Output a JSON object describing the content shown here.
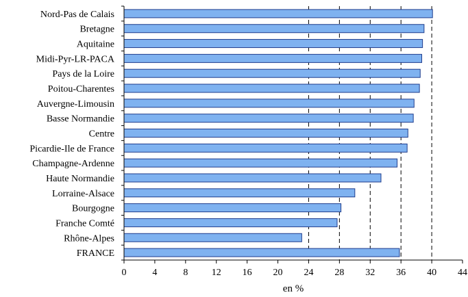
{
  "chart_data": {
    "type": "bar",
    "orientation": "horizontal",
    "title": "",
    "xlabel": "en %",
    "ylabel": "",
    "xlim": [
      0,
      44
    ],
    "x_ticks": [
      0,
      4,
      8,
      12,
      16,
      20,
      24,
      28,
      32,
      36,
      40,
      44
    ],
    "grid": "vertical dashed at 24, 28, 32, 36, 40",
    "categories": [
      "Nord-Pas de Calais",
      "Bretagne",
      "Aquitaine",
      "Midi-Pyr-LR-PACA",
      "Pays de la Loire",
      "Poitou-Charentes",
      "Auvergne-Limousin",
      "Basse Normandie",
      "Centre",
      "Picardie-Ile de France",
      "Champagne-Ardenne",
      "Haute Normandie",
      "Lorraine-Alsace",
      "Bourgogne",
      "Franche Comté",
      "Rhône-Alpes",
      "FRANCE"
    ],
    "values": [
      40.1,
      39.0,
      38.8,
      38.7,
      38.5,
      38.4,
      37.7,
      37.6,
      36.9,
      36.8,
      35.5,
      33.4,
      30.0,
      28.2,
      27.7,
      23.1,
      35.8
    ],
    "colors": {
      "bar_fill": "#7fb2f0",
      "bar_stroke": "#1f3c8c"
    }
  }
}
